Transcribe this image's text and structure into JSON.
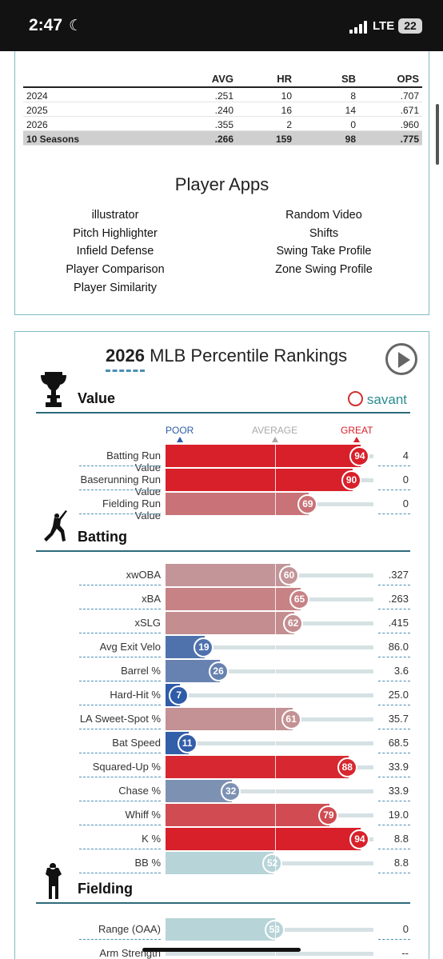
{
  "status_bar": {
    "time": "2:47",
    "network": "LTE",
    "battery": "22"
  },
  "career_table": {
    "headers": [
      "",
      "AVG",
      "HR",
      "SB",
      "OPS"
    ],
    "rows": [
      [
        "2024",
        ".251",
        "10",
        "8",
        ".707"
      ],
      [
        "2025",
        ".240",
        "16",
        "14",
        ".671"
      ],
      [
        "2026",
        ".355",
        "2",
        "0",
        ".960"
      ]
    ],
    "total": [
      "10 Seasons",
      ".266",
      "159",
      "98",
      ".775"
    ]
  },
  "player_apps": {
    "title": "Player Apps",
    "left": [
      "illustrator",
      "Pitch Highlighter",
      "Infield Defense",
      "Player Comparison",
      "Player Similarity"
    ],
    "right": [
      "Random Video",
      "Shifts",
      "Swing Take Profile",
      "Zone Swing Profile"
    ]
  },
  "percentile": {
    "year": "2026",
    "title": "MLB Percentile Rankings",
    "brand": "savant",
    "scale": {
      "poor": "POOR",
      "average": "AVERAGE",
      "great": "GREAT"
    },
    "sections": [
      {
        "name": "Value",
        "icon": "trophy-icon",
        "metrics": [
          {
            "label": "Batting Run Value",
            "pct": 94,
            "value": "4"
          },
          {
            "label": "Baserunning Run Value",
            "pct": 90,
            "value": "0"
          },
          {
            "label": "Fielding Run Value",
            "pct": 69,
            "value": "0"
          }
        ]
      },
      {
        "name": "Batting",
        "icon": "batter-icon",
        "metrics": [
          {
            "label": "xwOBA",
            "pct": 60,
            "value": ".327"
          },
          {
            "label": "xBA",
            "pct": 65,
            "value": ".263"
          },
          {
            "label": "xSLG",
            "pct": 62,
            "value": ".415"
          },
          {
            "label": "Avg Exit Velo",
            "pct": 19,
            "value": "86.0"
          },
          {
            "label": "Barrel %",
            "pct": 26,
            "value": "3.6"
          },
          {
            "label": "Hard-Hit %",
            "pct": 7,
            "value": "25.0"
          },
          {
            "label": "LA Sweet-Spot %",
            "pct": 61,
            "value": "35.7"
          },
          {
            "label": "Bat Speed",
            "pct": 11,
            "value": "68.5"
          },
          {
            "label": "Squared-Up %",
            "pct": 88,
            "value": "33.9"
          },
          {
            "label": "Chase %",
            "pct": 32,
            "value": "33.9"
          },
          {
            "label": "Whiff %",
            "pct": 79,
            "value": "19.0"
          },
          {
            "label": "K %",
            "pct": 94,
            "value": "8.8"
          },
          {
            "label": "BB %",
            "pct": 52,
            "value": "8.8",
            "neutral": true
          }
        ]
      },
      {
        "name": "Fielding",
        "icon": "fielder-icon",
        "metrics": [
          {
            "label": "Range (OAA)",
            "pct": 53,
            "value": "0",
            "neutral": true
          },
          {
            "label": "Arm Strength",
            "pct": null,
            "value": "--"
          }
        ]
      }
    ]
  },
  "colors": {
    "great": "#d8202a",
    "poor": "#2f5ca8",
    "average": "#bcbcbc",
    "accent": "#2f6a7c",
    "savant": "#2a8b8e"
  }
}
